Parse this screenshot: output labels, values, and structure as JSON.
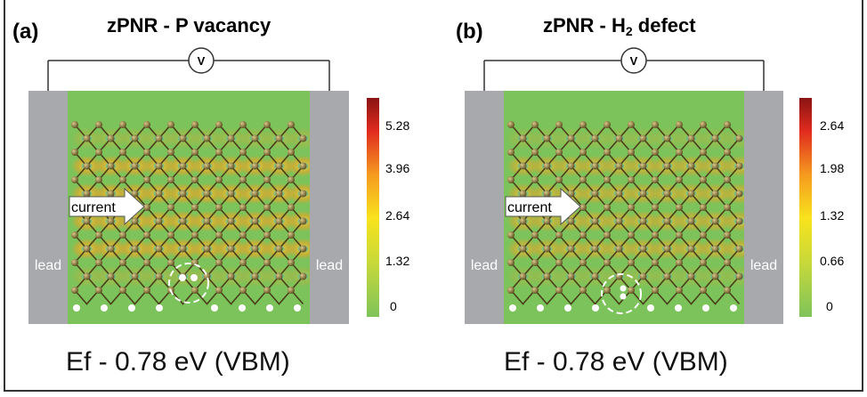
{
  "panels": [
    {
      "letter": "(a)",
      "title_main": "zPNR - P vacancy",
      "voltmeter": "V",
      "lead_left": "lead",
      "lead_right": "lead",
      "arrow_label": "current",
      "caption": "Ef - 0.78 eV (VBM)",
      "colorbar_ticks": [
        "5.28",
        "3.96",
        "2.64",
        "1.32",
        "0"
      ]
    },
    {
      "letter": "(b)",
      "title_main": "zPNR - H",
      "title_sub": "2",
      "title_tail": " defect",
      "voltmeter": "V",
      "lead_left": "lead",
      "lead_right": "lead",
      "arrow_label": "current",
      "caption": "Ef - 0.78 eV (VBM)",
      "colorbar_ticks": [
        "2.64",
        "1.98",
        "1.32",
        "0.66",
        "0"
      ]
    }
  ],
  "colors": {
    "lead": "#a7a9ac",
    "background_field": "#7cc35b",
    "high": "#e3241b",
    "mid": "#f7c51e",
    "atom": "#6b5a2a"
  }
}
